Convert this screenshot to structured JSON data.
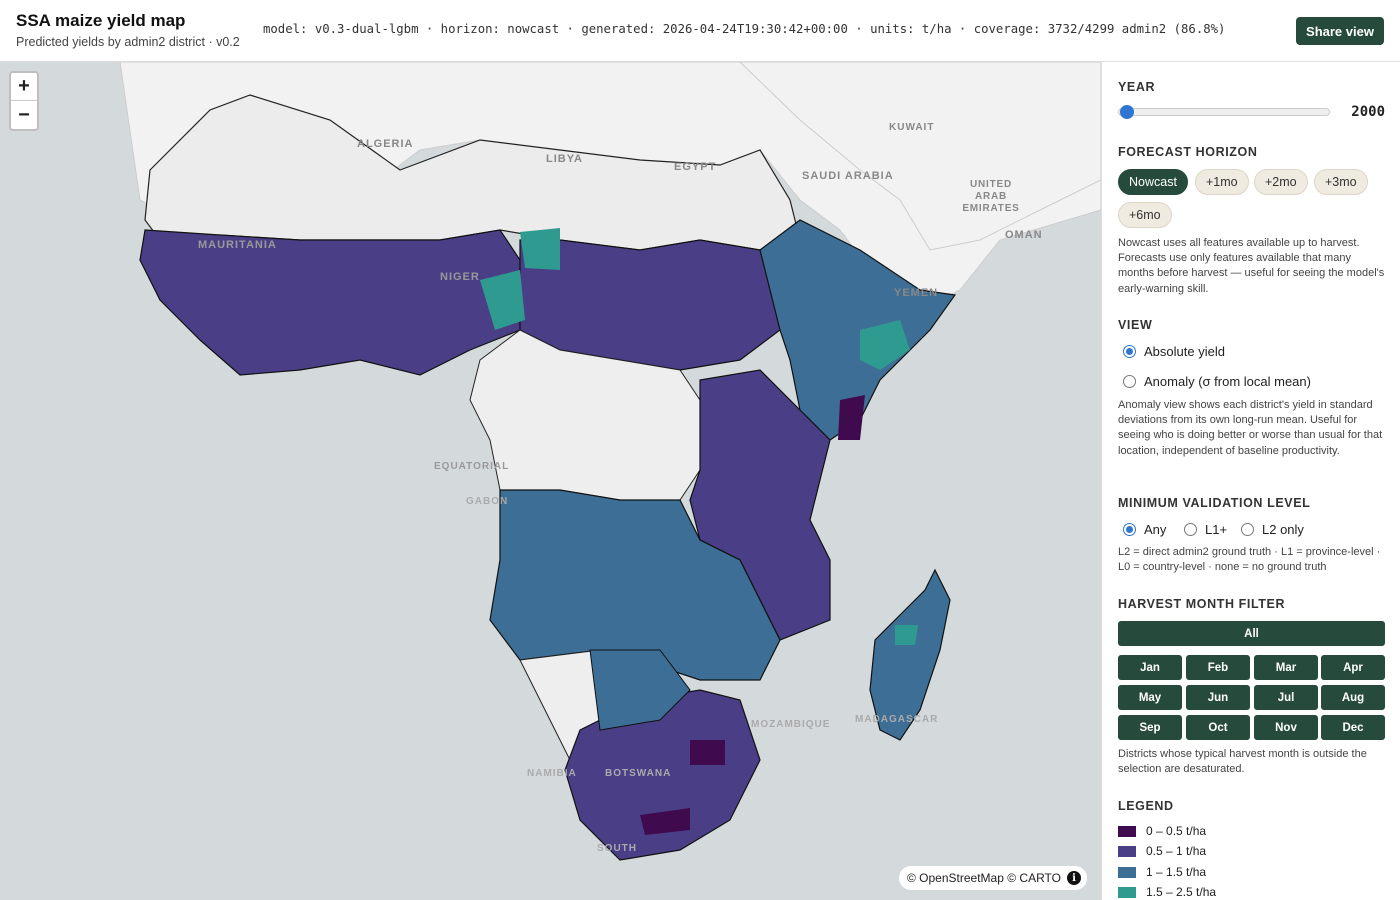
{
  "header": {
    "title": "SSA maize yield map",
    "subtitle": "Predicted yields by admin2 district · v0.2",
    "meta": "model: v0.3-dual-lgbm · horizon: nowcast · generated: 2026-04-24T19:30:42+00:00 · units: t/ha · coverage: 3732/4299 admin2 (86.8%)",
    "share_label": "Share view"
  },
  "map": {
    "zoom_in": "+",
    "zoom_out": "−",
    "attribution": "© OpenStreetMap © CARTO",
    "labels": {
      "algeria": "ALGERIA",
      "libya": "LIBYA",
      "egypt": "EGYPT",
      "kuwait": "KUWAIT",
      "saudi": "SAUDI ARABIA",
      "uae": "UNITED ARAB EMIRATES",
      "oman": "OMAN",
      "yemen": "YEMEN",
      "mauritania": "MAURITANIA",
      "niger": "NIGER",
      "equatorial": "EQUATORIAL",
      "gabon": "GABON",
      "mozambique": "MOZAMBIQUE",
      "madagascar": "MADAGASCAR",
      "namibia": "NAMIBIA",
      "botswana": "BOTSWANA",
      "south": "SOUTH"
    }
  },
  "sidebar": {
    "year": {
      "title": "YEAR",
      "value": "2000",
      "min": 2000,
      "max": 2023,
      "level": 0
    },
    "horizon": {
      "title": "FORECAST HORIZON",
      "options": [
        "Nowcast",
        "+1mo",
        "+2mo",
        "+3mo",
        "+6mo"
      ],
      "selected": "Nowcast",
      "help": "Nowcast uses all features available up to harvest. Forecasts use only features available that many months before harvest — useful for seeing the model's early-warning skill."
    },
    "view": {
      "title": "VIEW",
      "options": [
        "Absolute yield",
        "Anomaly (σ from local mean)"
      ],
      "selected": "Absolute yield",
      "help": "Anomaly view shows each district's yield in standard deviations from its own long-run mean. Useful for seeing who is doing better or worse than usual for that location, independent of baseline productivity."
    },
    "validation": {
      "title": "MINIMUM VALIDATION LEVEL",
      "options": [
        "Any",
        "L1+",
        "L2 only"
      ],
      "selected": "Any",
      "help": "L2 = direct admin2 ground truth · L1 = province-level · L0 = country-level · none = no ground truth"
    },
    "harvest": {
      "title": "HARVEST MONTH FILTER",
      "all_label": "All",
      "months": [
        "Jan",
        "Feb",
        "Mar",
        "Apr",
        "May",
        "Jun",
        "Jul",
        "Aug",
        "Sep",
        "Oct",
        "Nov",
        "Dec"
      ],
      "help": "Districts whose typical harvest month is outside the selection are desaturated."
    },
    "legend": {
      "title": "LEGEND",
      "items": [
        {
          "label": "0 – 0.5 t/ha",
          "color": "#3f0a4e"
        },
        {
          "label": "0.5 – 1 t/ha",
          "color": "#4a3f87"
        },
        {
          "label": "1 – 1.5 t/ha",
          "color": "#3d6f96"
        },
        {
          "label": "1.5 – 2.5 t/ha",
          "color": "#2f9a8f"
        }
      ]
    }
  },
  "colors": {
    "accent": "#264b3d",
    "radio": "#2f76d2",
    "ocean": "#d4dadc",
    "land": "#f2f2f2",
    "nodata": "#eeeeee"
  }
}
